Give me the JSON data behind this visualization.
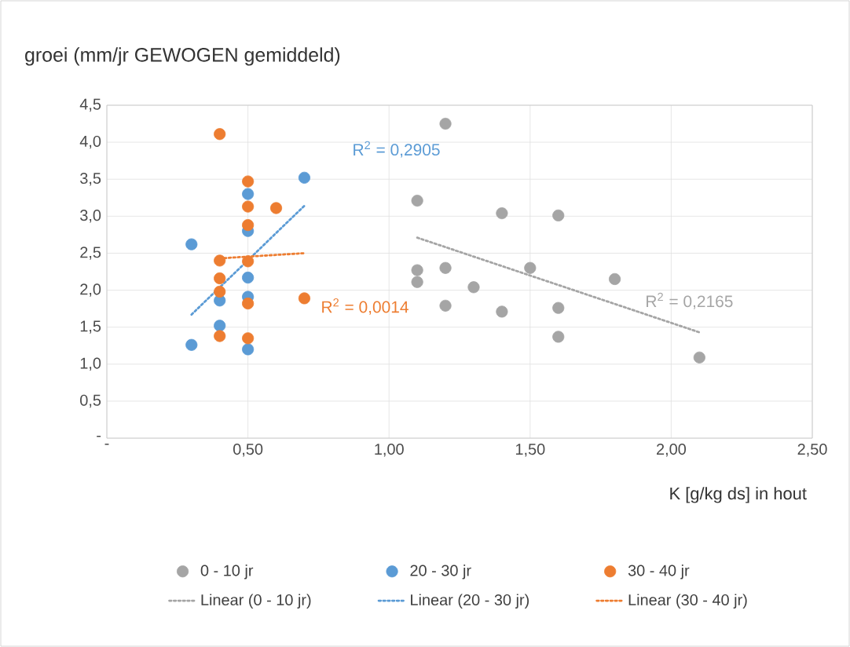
{
  "chart_data": {
    "type": "scatter",
    "title": "groei (mm/jr GEWOGEN gemiddeld)",
    "xlabel": "K [g/kg ds] in hout",
    "xlim": [
      0,
      2.5
    ],
    "ylim": [
      0,
      4.5
    ],
    "xticks": [
      {
        "value": 0,
        "label": "-"
      },
      {
        "value": 0.5,
        "label": "0,50"
      },
      {
        "value": 1,
        "label": "1,00"
      },
      {
        "value": 1.5,
        "label": "1,50"
      },
      {
        "value": 2,
        "label": "2,00"
      },
      {
        "value": 2.5,
        "label": "2,50"
      }
    ],
    "yticks": [
      {
        "value": 0,
        "label": "-"
      },
      {
        "value": 0.5,
        "label": "0,5"
      },
      {
        "value": 1,
        "label": "1,0"
      },
      {
        "value": 1.5,
        "label": "1,5"
      },
      {
        "value": 2,
        "label": "2,0"
      },
      {
        "value": 2.5,
        "label": "2,5"
      },
      {
        "value": 3,
        "label": "3,0"
      },
      {
        "value": 3.5,
        "label": "3,5"
      },
      {
        "value": 4,
        "label": "4,0"
      },
      {
        "value": 4.5,
        "label": "4,5"
      }
    ],
    "grid": true,
    "legend": "bottom",
    "series": [
      {
        "name": "0 - 10 jr",
        "marker": "circle",
        "color": "#a5a5a5",
        "x": [
          1.2,
          1.1,
          1.4,
          1.6,
          1.1,
          1.1,
          1.2,
          1.3,
          1.5,
          1.8,
          1.2,
          1.4,
          1.6,
          1.6,
          2.1
        ],
        "values": [
          4.25,
          3.21,
          3.04,
          3.01,
          2.27,
          2.11,
          2.3,
          2.04,
          2.3,
          2.15,
          1.79,
          1.71,
          1.76,
          1.37,
          1.09
        ]
      },
      {
        "name": "20 - 30 jr",
        "marker": "circle",
        "color": "#5b9bd5",
        "x": [
          0.3,
          0.7,
          0.5,
          0.5,
          0.5,
          0.4,
          0.5,
          0.4,
          0.3,
          0.5
        ],
        "values": [
          2.62,
          3.52,
          3.3,
          2.8,
          2.17,
          1.86,
          1.91,
          1.52,
          1.26,
          1.2
        ]
      },
      {
        "name": "30 - 40 jr",
        "marker": "circle",
        "color": "#ed7d31",
        "x": [
          0.4,
          0.5,
          0.5,
          0.6,
          0.5,
          0.4,
          0.5,
          0.4,
          0.4,
          0.7,
          0.5,
          0.4,
          0.5
        ],
        "values": [
          4.11,
          3.47,
          3.13,
          3.11,
          2.88,
          2.4,
          2.39,
          2.16,
          1.98,
          1.89,
          1.82,
          1.38,
          1.35
        ]
      },
      {
        "name": "Linear (0 - 10 jr)",
        "type": "line",
        "marker": "none",
        "line_style": "dotted",
        "color": "#a5a5a5",
        "x": [
          1.1,
          2.1
        ],
        "values": [
          2.71,
          1.43
        ]
      },
      {
        "name": "Linear (20 - 30 jr)",
        "type": "line",
        "marker": "none",
        "line_style": "dotted",
        "color": "#5b9bd5",
        "x": [
          0.3,
          0.7
        ],
        "values": [
          1.67,
          3.14
        ]
      },
      {
        "name": "Linear (30 - 40 jr)",
        "type": "line",
        "marker": "none",
        "line_style": "dotted",
        "color": "#ed7d31",
        "x": [
          0.4,
          0.7
        ],
        "values": [
          2.43,
          2.5
        ]
      }
    ],
    "annotations": [
      "R$^{2}$ = 0,2165",
      "R$^{2}$ = 0,2905",
      "R$^{2}$ = 0,0014"
    ]
  }
}
